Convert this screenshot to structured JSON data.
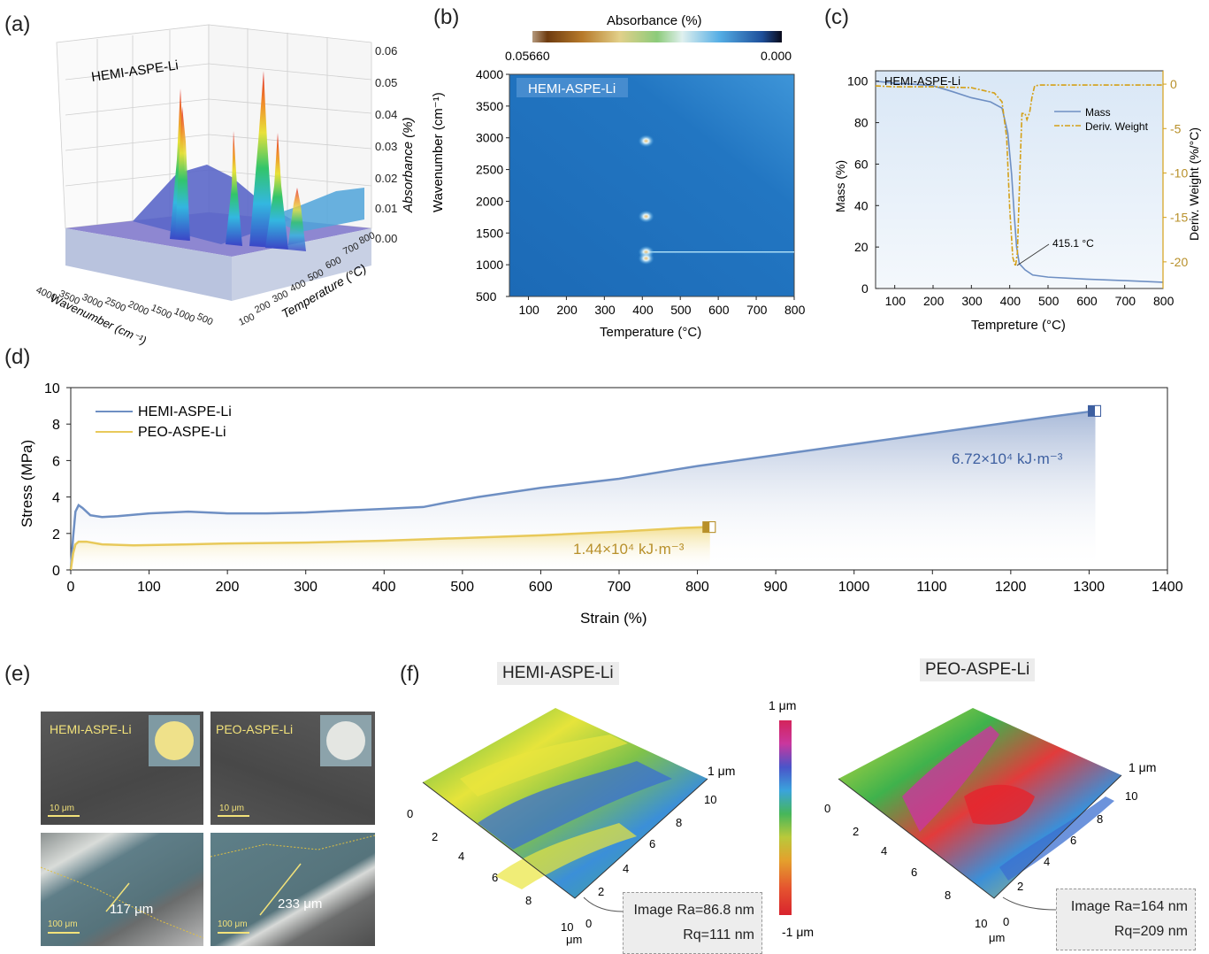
{
  "panels": {
    "a": "(a)",
    "b": "(b)",
    "c": "(c)",
    "d": "(d)",
    "e": "(e)",
    "f": "(f)"
  },
  "panel_a": {
    "title": "HEMI-ASPE-Li",
    "zlabel": "Absorbance (%)",
    "xlabel": "Wavenumber (cm⁻¹)",
    "ylabel": "Temperature (°C)",
    "zticks": [
      "0.06",
      "0.05",
      "0.04",
      "0.03",
      "0.02",
      "0.01",
      "0.00"
    ],
    "xticks": [
      "4000",
      "3500",
      "3000",
      "2500",
      "2000",
      "1500",
      "1000",
      "500"
    ],
    "yticks": [
      "100",
      "200",
      "300",
      "400",
      "500",
      "600",
      "700",
      "800"
    ]
  },
  "panel_b": {
    "colorbar_title": "Absorbance (%)",
    "cb_left": "0.05660",
    "cb_right": "0.000",
    "legend": "HEMI-ASPE-Li",
    "ylabel": "Wavenumber (cm⁻¹)",
    "xlabel": "Temperature (°C)"
  },
  "panel_c": {
    "title": "HEMI-ASPE-Li",
    "ylabel_left": "Mass (%)",
    "ylabel_right": "Deriv. Weight (%/°C)",
    "xlabel": "Tempreture (°C)",
    "legend_mass": "Mass",
    "legend_deriv": "Deriv. Weight",
    "annotation": "415.1 °C"
  },
  "panel_d": {
    "ylabel": "Stress (MPa)",
    "xlabel": "Strain (%)",
    "legend": [
      "HEMI-ASPE-Li",
      "PEO-ASPE-Li"
    ],
    "toughness_hemi": "6.72×10⁴ kJ·m⁻³",
    "toughness_peo": "1.44×10⁴ kJ·m⁻³"
  },
  "panel_e": {
    "top_left_label": "HEMI-ASPE-Li",
    "top_right_label": "PEO-ASPE-Li",
    "scale_small": "10 μm",
    "scale_large": "100 μm",
    "thickness_hemi": "117 μm",
    "thickness_peo": "233 μm"
  },
  "panel_f": {
    "left_title": "HEMI-ASPE-Li",
    "right_title": "PEO-ASPE-Li",
    "cb_top": "1 μm",
    "cb_bottom": "-1 μm",
    "z_label": "1 μm",
    "axis_unit": "μm",
    "left_ra": "Image Ra=86.8 nm",
    "left_rq": "Rq=111 nm",
    "right_ra": "Image Ra=164 nm",
    "right_rq": "Rq=209 nm",
    "ticks_a": [
      "0",
      "2",
      "4",
      "6",
      "8",
      "10"
    ],
    "ticks_b": [
      "10",
      "8",
      "6",
      "4",
      "2",
      "0"
    ]
  },
  "chart_data": [
    {
      "type": "line",
      "id": "b",
      "title": "HEMI-ASPE-Li",
      "xlabel": "Temperature (°C)",
      "ylabel": "Wavenumber (cm⁻¹)",
      "xlim": [
        50,
        800
      ],
      "ylim": [
        500,
        4000
      ],
      "xticks": [
        100,
        200,
        300,
        400,
        500,
        600,
        700,
        800
      ],
      "yticks": [
        500,
        1000,
        1500,
        2000,
        2500,
        3000,
        3500,
        4000
      ],
      "hotspots": [
        {
          "x": 410,
          "y": 2950
        },
        {
          "x": 410,
          "y": 1760
        },
        {
          "x": 410,
          "y": 1200
        },
        {
          "x": 410,
          "y": 1100
        }
      ],
      "band_y": 1200
    },
    {
      "type": "line",
      "id": "c",
      "xlabel": "Tempreture (°C)",
      "xlim": [
        50,
        800
      ],
      "ylim_left": [
        0,
        105
      ],
      "ylim_right": [
        -23,
        1.5
      ],
      "xticks": [
        100,
        200,
        300,
        400,
        500,
        600,
        700,
        800
      ],
      "yticks_left": [
        0,
        20,
        40,
        60,
        80,
        100
      ],
      "yticks_right": [
        0,
        -5,
        -10,
        -15,
        -20
      ],
      "series": [
        {
          "name": "Mass",
          "x": [
            50,
            100,
            150,
            200,
            250,
            300,
            350,
            380,
            395,
            405,
            412,
            418,
            425,
            440,
            460,
            500,
            600,
            700,
            800
          ],
          "y": [
            100,
            99,
            98.5,
            97.8,
            95,
            92,
            90,
            87,
            75,
            55,
            35,
            20,
            12,
            9,
            6.5,
            5.5,
            4.5,
            3.8,
            3
          ]
        },
        {
          "name": "Deriv. Weight",
          "x": [
            50,
            100,
            200,
            300,
            360,
            380,
            392,
            400,
            408,
            415,
            420,
            428,
            432,
            440,
            445,
            452,
            458,
            465,
            480,
            600,
            800
          ],
          "y": [
            -0.2,
            -0.3,
            -0.3,
            -0.4,
            -1,
            -2,
            -6,
            -14,
            -19.5,
            -20.5,
            -19,
            -8,
            -3.3,
            -3.3,
            -4,
            -3.2,
            -1.5,
            -0.2,
            -0.1,
            -0.1,
            -0.1
          ]
        }
      ]
    },
    {
      "type": "line",
      "id": "d",
      "xlabel": "Strain (%)",
      "ylabel": "Stress (MPa)",
      "xlim": [
        0,
        1400
      ],
      "ylim": [
        0,
        10
      ],
      "xticks": [
        0,
        100,
        200,
        300,
        400,
        500,
        600,
        700,
        800,
        900,
        1000,
        1100,
        1200,
        1300,
        1400
      ],
      "yticks": [
        0,
        2,
        4,
        6,
        8,
        10
      ],
      "series": [
        {
          "name": "HEMI-ASPE-Li",
          "x": [
            0,
            3,
            6,
            10,
            15,
            25,
            40,
            60,
            100,
            150,
            200,
            250,
            300,
            350,
            400,
            450,
            480,
            520,
            600,
            700,
            800,
            900,
            1000,
            1100,
            1200,
            1250,
            1300,
            1308
          ],
          "y": [
            0,
            1.8,
            3.2,
            3.55,
            3.4,
            3.0,
            2.9,
            2.95,
            3.1,
            3.2,
            3.1,
            3.1,
            3.15,
            3.25,
            3.35,
            3.45,
            3.7,
            4.0,
            4.5,
            5.0,
            5.7,
            6.3,
            6.9,
            7.5,
            8.1,
            8.4,
            8.68,
            8.72
          ]
        },
        {
          "name": "PEO-ASPE-Li",
          "x": [
            0,
            3,
            6,
            10,
            20,
            40,
            80,
            150,
            200,
            300,
            400,
            500,
            600,
            700,
            780,
            810,
            816
          ],
          "y": [
            0,
            0.9,
            1.4,
            1.55,
            1.55,
            1.4,
            1.35,
            1.4,
            1.45,
            1.5,
            1.6,
            1.75,
            1.9,
            2.1,
            2.3,
            2.35,
            2.35
          ]
        }
      ]
    }
  ]
}
